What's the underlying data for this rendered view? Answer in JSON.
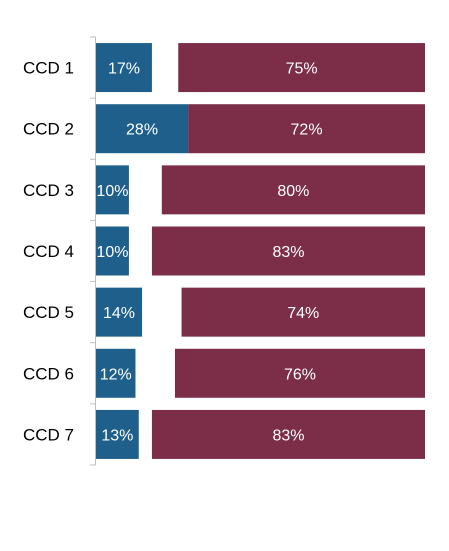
{
  "chart_data": {
    "type": "bar",
    "orientation": "horizontal",
    "categories": [
      "CCD 1",
      "CCD 2",
      "CCD 3",
      "CCD 4",
      "CCD 5",
      "CCD 6",
      "CCD 7"
    ],
    "series": [
      {
        "color": "#1f5f8b",
        "values": [
          17,
          28,
          10,
          10,
          14,
          12,
          13
        ],
        "labels": [
          "17%",
          "28%",
          "10%",
          "10%",
          "14%",
          "12%",
          "13%"
        ]
      },
      {
        "color": "#7c2d48",
        "values": [
          75,
          72,
          80,
          83,
          74,
          76,
          83
        ],
        "labels": [
          "75%",
          "72%",
          "80%",
          "83%",
          "74%",
          "76%",
          "83%"
        ]
      }
    ],
    "title": "",
    "xlabel": "",
    "ylabel": "",
    "xlim": [
      0,
      100
    ],
    "grid": false,
    "legend": "none"
  }
}
